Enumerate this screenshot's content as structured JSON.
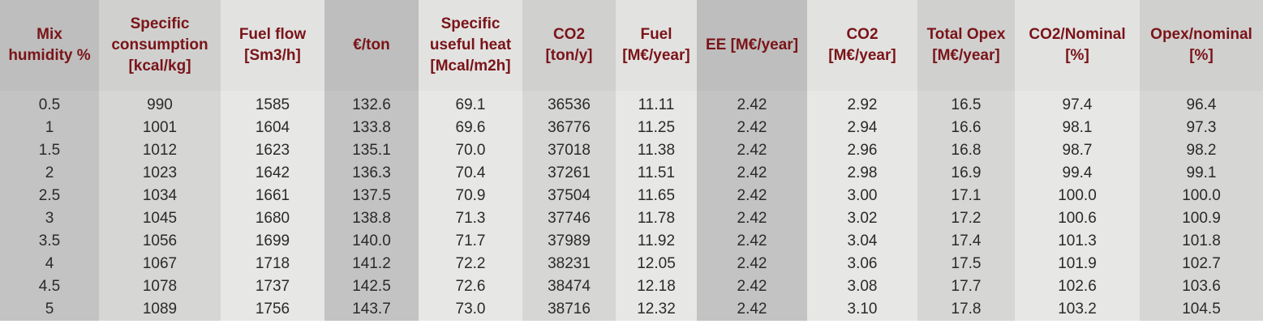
{
  "table": {
    "headers": [
      [
        "Mix",
        "humidity %"
      ],
      [
        "Specific",
        "consumption",
        "[kcal/kg]"
      ],
      [
        "Fuel flow",
        "[Sm3/h]"
      ],
      [
        "€/ton"
      ],
      [
        "Specific",
        "useful heat",
        "[Mcal/m2h]"
      ],
      [
        "CO2",
        "[ton/y]"
      ],
      [
        "Fuel",
        "[M€/year]"
      ],
      [
        "EE [M€/year]"
      ],
      [
        "CO2",
        "[M€/year]"
      ],
      [
        "Total Opex",
        "[M€/year]"
      ],
      [
        "CO2/Nominal",
        "[%]"
      ],
      [
        "Opex/nominal",
        "[%]"
      ]
    ],
    "rows": [
      [
        "0.5",
        "990",
        "1585",
        "132.6",
        "69.1",
        "36536",
        "11.11",
        "2.42",
        "2.92",
        "16.5",
        "97.4",
        "96.4"
      ],
      [
        "1",
        "1001",
        "1604",
        "133.8",
        "69.6",
        "36776",
        "11.25",
        "2.42",
        "2.94",
        "16.6",
        "98.1",
        "97.3"
      ],
      [
        "1.5",
        "1012",
        "1623",
        "135.1",
        "70.0",
        "37018",
        "11.38",
        "2.42",
        "2.96",
        "16.8",
        "98.7",
        "98.2"
      ],
      [
        "2",
        "1023",
        "1642",
        "136.3",
        "70.4",
        "37261",
        "11.51",
        "2.42",
        "2.98",
        "16.9",
        "99.4",
        "99.1"
      ],
      [
        "2.5",
        "1034",
        "1661",
        "137.5",
        "70.9",
        "37504",
        "11.65",
        "2.42",
        "3.00",
        "17.1",
        "100.0",
        "100.0"
      ],
      [
        "3",
        "1045",
        "1680",
        "138.8",
        "71.3",
        "37746",
        "11.78",
        "2.42",
        "3.02",
        "17.2",
        "100.6",
        "100.9"
      ],
      [
        "3.5",
        "1056",
        "1699",
        "140.0",
        "71.7",
        "37989",
        "11.92",
        "2.42",
        "3.04",
        "17.4",
        "101.3",
        "101.8"
      ],
      [
        "4",
        "1067",
        "1718",
        "141.2",
        "72.2",
        "38231",
        "12.05",
        "2.42",
        "3.06",
        "17.5",
        "101.9",
        "102.7"
      ],
      [
        "4.5",
        "1078",
        "1737",
        "142.5",
        "72.6",
        "38474",
        "12.18",
        "2.42",
        "3.08",
        "17.7",
        "102.6",
        "103.6"
      ],
      [
        "5",
        "1089",
        "1756",
        "143.7",
        "73.0",
        "38716",
        "12.32",
        "2.42",
        "3.10",
        "17.8",
        "103.2",
        "104.5"
      ]
    ],
    "colors": {
      "header_text": "#7a1418",
      "body_text": "#2a2a2a",
      "shade_dark": "#c2c3c2",
      "shade_medium": "#d6d6d5",
      "shade_light": "#e7e7e6"
    }
  }
}
